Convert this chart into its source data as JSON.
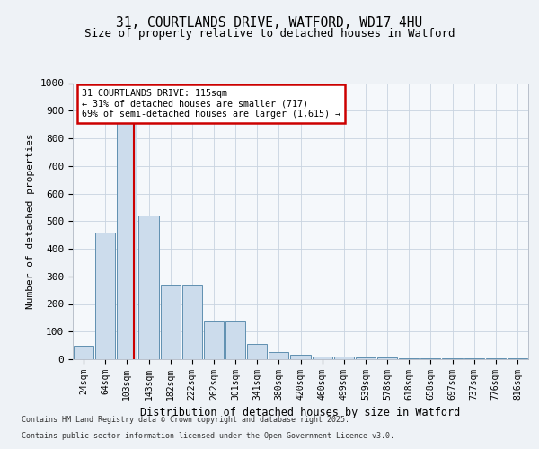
{
  "title1": "31, COURTLANDS DRIVE, WATFORD, WD17 4HU",
  "title2": "Size of property relative to detached houses in Watford",
  "xlabel": "Distribution of detached houses by size in Watford",
  "ylabel": "Number of detached properties",
  "bin_labels": [
    "24sqm",
    "64sqm",
    "103sqm",
    "143sqm",
    "182sqm",
    "222sqm",
    "262sqm",
    "301sqm",
    "341sqm",
    "380sqm",
    "420sqm",
    "460sqm",
    "499sqm",
    "539sqm",
    "578sqm",
    "618sqm",
    "658sqm",
    "697sqm",
    "737sqm",
    "776sqm",
    "816sqm"
  ],
  "bar_values": [
    50,
    460,
    960,
    520,
    270,
    270,
    135,
    135,
    55,
    25,
    15,
    10,
    10,
    8,
    5,
    3,
    3,
    3,
    3,
    3,
    3
  ],
  "bar_color": "#ccdcec",
  "bar_edge_color": "#6090b0",
  "vline_x_index": 2.3,
  "vline_color": "#cc0000",
  "annotation_text": "31 COURTLANDS DRIVE: 115sqm\n← 31% of detached houses are smaller (717)\n69% of semi-detached houses are larger (1,615) →",
  "annotation_box_color": "#ffffff",
  "annotation_box_edge_color": "#cc0000",
  "ylim": [
    0,
    1000
  ],
  "yticks": [
    0,
    100,
    200,
    300,
    400,
    500,
    600,
    700,
    800,
    900,
    1000
  ],
  "footer1": "Contains HM Land Registry data © Crown copyright and database right 2025.",
  "footer2": "Contains public sector information licensed under the Open Government Licence v3.0.",
  "bg_color": "#eef2f6",
  "plot_bg_color": "#f5f8fb",
  "grid_color": "#c8d4e0"
}
